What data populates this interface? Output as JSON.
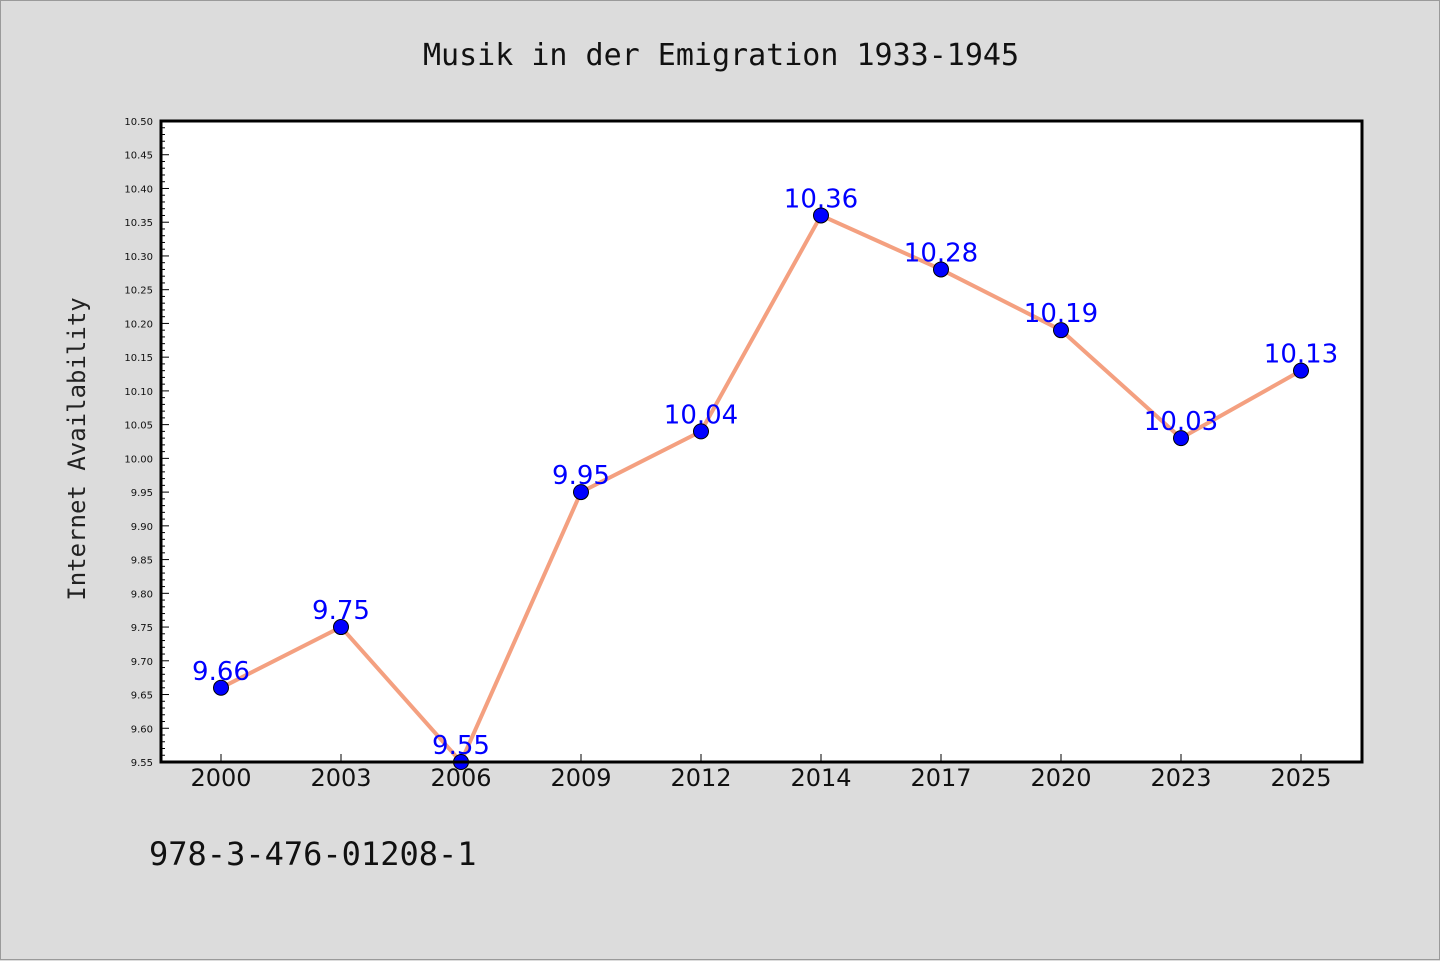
{
  "chart_data": {
    "type": "line",
    "title": "Musik in der Emigration 1933-1945",
    "xlabel": "",
    "ylabel": "Internet Availability",
    "categories": [
      "2000",
      "2003",
      "2006",
      "2009",
      "2012",
      "2014",
      "2017",
      "2020",
      "2023",
      "2025"
    ],
    "series": [
      {
        "values": [
          9.66,
          9.75,
          9.55,
          9.95,
          10.04,
          10.36,
          10.28,
          10.19,
          10.03,
          10.13
        ],
        "data_labels": [
          "9.66",
          "9.75",
          "9.55",
          "9.95",
          "10.04",
          "10.36",
          "10.28",
          "10.19",
          "10.03",
          "10.13"
        ]
      }
    ],
    "ylim": [
      9.55,
      10.5
    ],
    "yticks": [
      "9.55",
      "9.60",
      "9.65",
      "9.70",
      "9.75",
      "9.80",
      "9.85",
      "9.90",
      "9.95",
      "10.00",
      "10.05",
      "10.10",
      "10.15",
      "10.20",
      "10.25",
      "10.30",
      "10.35",
      "10.40",
      "10.45",
      "10.50"
    ],
    "grid": false,
    "legend": "none",
    "line_color": "#f4a080",
    "marker_color": "#0000ff",
    "label_color": "#0000ff",
    "annotation": "978-3-476-01208-1"
  }
}
